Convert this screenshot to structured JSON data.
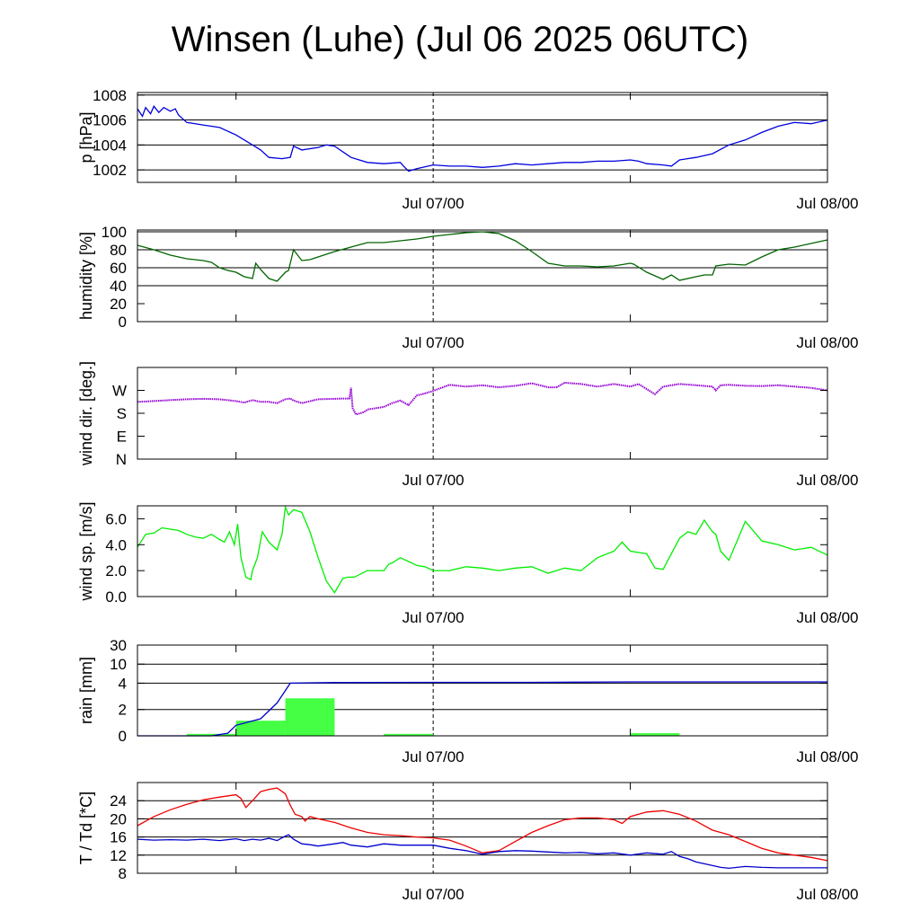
{
  "title": "Winsen (Luhe) (Jul 06 2025 06UTC)",
  "time_axis": {
    "start_hours": 0,
    "end_hours": 42,
    "labels": [
      {
        "at_hours": 18,
        "text": "Jul 07/00"
      },
      {
        "at_hours": 42,
        "text": "Jul 08/00"
      }
    ],
    "minor_ticks_hours": [
      6,
      30
    ]
  },
  "colors": {
    "pressure": "#0000dd",
    "humidity": "#006400",
    "wind_dir": "#9400d3",
    "wind_speed": "#00ee00",
    "rain_bar": "#44ff44",
    "rain_sum": "#0000cc",
    "temperature": "#ee0000",
    "dewpoint": "#0000cc"
  },
  "chart_data": [
    {
      "id": "pressure",
      "type": "line",
      "ylabel": "p [hPa]",
      "ylim": [
        1001,
        1008.2
      ],
      "yticks": [
        1002,
        1004,
        1006,
        1008
      ],
      "ytick_labels": [
        "1002",
        "1004",
        "1006",
        "1008"
      ],
      "grid_lines": [
        1002,
        1004,
        1006,
        1008
      ],
      "series": [
        {
          "color_key": "pressure",
          "x": [
            0,
            0.3,
            0.5,
            0.8,
            1.0,
            1.3,
            1.6,
            2.0,
            2.3,
            2.5,
            3,
            4,
            5,
            6,
            7,
            7.5,
            8,
            8.8,
            9.3,
            9.5,
            10,
            11,
            11.5,
            12,
            13,
            14,
            15,
            16,
            16.2,
            16.5,
            17,
            18,
            19,
            20,
            21,
            22,
            23,
            24,
            25,
            26,
            27,
            28,
            29,
            30,
            30.5,
            31,
            32,
            32.5,
            33,
            34,
            35,
            36,
            37,
            38,
            39,
            40,
            41,
            42
          ],
          "y": [
            1006.9,
            1006.3,
            1007.0,
            1006.5,
            1007.1,
            1006.6,
            1007.0,
            1006.7,
            1006.9,
            1006.4,
            1005.8,
            1005.6,
            1005.4,
            1004.8,
            1004.0,
            1003.6,
            1003.0,
            1002.9,
            1003.0,
            1003.9,
            1003.6,
            1003.8,
            1004.0,
            1003.9,
            1003.0,
            1002.6,
            1002.5,
            1002.6,
            1002.3,
            1001.9,
            1002.1,
            1002.4,
            1002.3,
            1002.3,
            1002.2,
            1002.3,
            1002.5,
            1002.4,
            1002.5,
            1002.6,
            1002.6,
            1002.7,
            1002.7,
            1002.8,
            1002.7,
            1002.5,
            1002.4,
            1002.3,
            1002.8,
            1003.0,
            1003.3,
            1004.0,
            1004.4,
            1005.0,
            1005.5,
            1005.8,
            1005.7,
            1006.0
          ]
        }
      ]
    },
    {
      "id": "humidity",
      "type": "line",
      "ylabel": "humidity [%]",
      "ylim": [
        0,
        102
      ],
      "yticks": [
        0,
        20,
        40,
        60,
        80,
        100
      ],
      "ytick_labels": [
        "0",
        "20",
        "40",
        "60",
        "80",
        "100"
      ],
      "grid_lines": [
        40,
        60,
        80,
        100
      ],
      "series": [
        {
          "color_key": "humidity",
          "x": [
            0,
            1,
            2,
            3,
            4,
            4.5,
            5,
            5.5,
            6,
            6.2,
            6.5,
            7,
            7.2,
            7.5,
            8,
            8.5,
            9,
            9.2,
            9.5,
            10,
            10.5,
            11,
            12,
            13,
            14,
            15,
            16,
            17,
            18,
            19,
            20,
            21,
            22,
            23,
            24,
            25,
            26,
            27,
            28,
            29,
            30,
            30.2,
            31,
            32,
            32.5,
            33,
            34,
            34.5,
            35,
            35.2,
            36,
            37,
            38,
            39,
            40,
            41,
            42
          ],
          "y": [
            85,
            80,
            74,
            70,
            68,
            66,
            60,
            57,
            55,
            53,
            50,
            48,
            65,
            58,
            48,
            45,
            55,
            57,
            80,
            68,
            69,
            72,
            78,
            83,
            88,
            88,
            90,
            92,
            95,
            97,
            99,
            100,
            98,
            90,
            78,
            65,
            62,
            62,
            61,
            62,
            65,
            64,
            55,
            47,
            52,
            46,
            50,
            52,
            52,
            62,
            64,
            63,
            72,
            80,
            83,
            87,
            91
          ]
        }
      ]
    },
    {
      "id": "wind_dir",
      "type": "scatter",
      "ylabel": "wind dir. [deg.]",
      "ylim": [
        0,
        360
      ],
      "yticks": [
        0,
        90,
        180,
        270
      ],
      "ytick_labels": [
        "N",
        "E",
        "S",
        "W"
      ],
      "grid_lines": [],
      "series": [
        {
          "color_key": "wind_dir",
          "x": [
            0,
            1,
            2,
            3,
            4,
            5,
            6,
            6.5,
            7,
            7.5,
            8,
            8.5,
            9,
            9.3,
            9.5,
            10,
            11,
            12,
            12.5,
            12.9,
            13,
            13.1,
            13.3,
            13.8,
            14,
            15,
            15.5,
            16,
            16.5,
            17,
            17.5,
            18,
            19,
            20,
            21,
            22,
            23,
            24,
            25,
            25.5,
            26,
            27,
            28,
            29,
            30,
            30.5,
            31,
            31.5,
            32,
            33,
            34,
            35,
            35.2,
            35.5,
            36,
            37,
            38,
            39,
            40,
            41,
            42
          ],
          "y": [
            225,
            228,
            232,
            235,
            237,
            235,
            228,
            222,
            232,
            225,
            225,
            220,
            235,
            238,
            230,
            220,
            235,
            237,
            238,
            238,
            280,
            200,
            175,
            185,
            195,
            205,
            220,
            230,
            212,
            250,
            258,
            268,
            292,
            285,
            290,
            282,
            288,
            298,
            282,
            282,
            300,
            295,
            285,
            295,
            285,
            295,
            275,
            255,
            285,
            295,
            290,
            285,
            270,
            290,
            292,
            288,
            287,
            290,
            285,
            280,
            270
          ]
        }
      ]
    },
    {
      "id": "wind_speed",
      "type": "line",
      "ylabel": "wind sp. [m/s]",
      "ylim": [
        0,
        7.0
      ],
      "yticks": [
        0,
        2,
        4,
        6
      ],
      "ytick_labels": [
        "0.0",
        "2.0",
        "4.0",
        "6.0"
      ],
      "grid_lines": [],
      "series": [
        {
          "color_key": "wind_speed",
          "x": [
            0,
            0.5,
            1,
            1.5,
            2,
            2.5,
            3,
            3.5,
            4,
            4.5,
            5,
            5.3,
            5.6,
            5.9,
            6.1,
            6.3,
            6.6,
            6.9,
            7,
            7.3,
            7.6,
            8,
            8.5,
            8.8,
            9,
            9.2,
            9.5,
            10,
            10.5,
            11,
            11.5,
            12,
            12.5,
            12.8,
            13,
            13.2,
            14,
            15,
            15.3,
            15.5,
            16,
            16.5,
            17,
            17.5,
            18,
            19,
            20,
            21,
            22,
            23,
            24,
            25,
            26,
            27,
            28,
            29,
            29.5,
            30,
            31,
            31.5,
            32,
            33,
            33.5,
            34,
            34.5,
            35,
            35.2,
            35.5,
            36,
            37,
            38,
            39,
            40,
            41,
            42
          ],
          "y": [
            3.8,
            4.8,
            4.9,
            5.3,
            5.2,
            5.1,
            4.8,
            4.6,
            4.5,
            4.8,
            4.4,
            4.2,
            5.0,
            4.0,
            5.6,
            3.0,
            1.5,
            1.3,
            2.0,
            3.0,
            5.0,
            4.2,
            3.6,
            4.8,
            6.9,
            6.3,
            6.7,
            6.5,
            5.0,
            3.0,
            1.2,
            0.3,
            1.4,
            1.5,
            1.5,
            1.5,
            2.0,
            2.0,
            2.5,
            2.6,
            3.0,
            2.7,
            2.4,
            2.3,
            2.0,
            2.0,
            2.3,
            2.2,
            2.0,
            2.2,
            2.3,
            1.8,
            2.2,
            2.0,
            3.0,
            3.5,
            4.2,
            3.5,
            3.3,
            2.2,
            2.1,
            4.5,
            5.0,
            4.8,
            5.9,
            5.0,
            4.8,
            3.5,
            2.8,
            5.8,
            4.3,
            4.0,
            3.6,
            3.8,
            3.2
          ]
        }
      ]
    },
    {
      "id": "rain",
      "type": "bar",
      "ylabel": "rain [mm]",
      "ylim": [
        0,
        30
      ],
      "yticks": [
        0,
        2,
        4,
        10,
        30
      ],
      "ytick_labels": [
        "0",
        "2",
        "4",
        "10",
        "30"
      ],
      "grid_lines": [
        2,
        4,
        10,
        30
      ],
      "bars": {
        "color_key": "rain_bar",
        "bin_hours": 3,
        "starts": [
          3,
          6,
          9,
          15,
          30
        ],
        "values": [
          0.15,
          1.15,
          2.85,
          0.15,
          0.2
        ]
      },
      "series": [
        {
          "color_key": "rain_sum",
          "x": [
            0,
            4.5,
            5.5,
            6,
            7.5,
            8.5,
            9.3,
            10,
            12,
            18,
            24,
            30,
            42
          ],
          "y": [
            0,
            0,
            0.2,
            0.8,
            1.3,
            2.5,
            4.0,
            4.1,
            4.2,
            4.25,
            4.25,
            4.4,
            4.4
          ]
        }
      ]
    },
    {
      "id": "temp",
      "type": "line",
      "ylabel": "T / Td [*C]",
      "ylim": [
        8,
        28
      ],
      "yticks": [
        8,
        12,
        16,
        20,
        24
      ],
      "ytick_labels": [
        "8",
        "12",
        "16",
        "20",
        "24"
      ],
      "grid_lines": [
        12,
        16,
        20,
        24
      ],
      "series": [
        {
          "color_key": "temperature",
          "x": [
            0,
            1,
            2,
            3,
            4,
            5,
            6,
            6.3,
            6.6,
            7,
            7.5,
            8,
            8.5,
            9,
            9.3,
            9.6,
            10,
            10.2,
            10.5,
            11,
            12,
            13,
            14,
            15,
            16,
            17,
            18,
            19,
            20,
            21,
            22,
            23,
            24,
            25,
            26,
            27,
            28,
            29,
            29.5,
            30,
            31,
            32,
            33,
            34,
            35,
            36,
            37,
            38,
            39,
            40,
            41,
            42
          ],
          "y": [
            18.5,
            20.5,
            22,
            23.2,
            24.2,
            24.8,
            25.3,
            24.5,
            22.5,
            24,
            26,
            26.5,
            26.8,
            25.5,
            23,
            21,
            20.5,
            19.5,
            20.5,
            20,
            19.2,
            18,
            17,
            16.5,
            16.3,
            16,
            15.8,
            15.3,
            14,
            12.5,
            13,
            15,
            17,
            18.5,
            19.8,
            20.2,
            20.2,
            19.8,
            19.0,
            20.5,
            21.5,
            21.8,
            21,
            19.5,
            17.5,
            16.5,
            15,
            13.5,
            12.5,
            12,
            11.5,
            10.8
          ]
        },
        {
          "color_key": "dewpoint",
          "x": [
            0,
            1,
            2,
            3,
            4,
            5,
            6,
            6.5,
            7,
            7.5,
            8,
            8.5,
            9,
            9.2,
            9.5,
            10,
            10.5,
            11,
            12,
            12.5,
            13,
            14,
            15,
            16,
            17,
            18,
            19,
            20,
            21,
            22,
            23,
            24,
            25,
            26,
            27,
            28,
            29,
            30,
            31,
            32,
            32.5,
            33,
            33.5,
            34,
            35,
            35.5,
            36,
            37,
            38,
            39,
            40,
            41,
            42
          ],
          "y": [
            15.5,
            15.3,
            15.4,
            15.3,
            15.5,
            15.2,
            15.6,
            15.2,
            15.5,
            15.3,
            15.7,
            15.2,
            16.2,
            16.5,
            15.5,
            14.5,
            14.3,
            14.0,
            14.5,
            14.8,
            14.2,
            13.8,
            14.5,
            14.2,
            14.2,
            14.2,
            13.5,
            13.0,
            12.2,
            12.8,
            13.0,
            12.9,
            12.7,
            12.5,
            12.6,
            12.3,
            12.5,
            12.0,
            12.5,
            12.2,
            12.8,
            11.7,
            11.2,
            10.5,
            9.7,
            9.3,
            9.1,
            9.5,
            9.3,
            9.2,
            9.2,
            9.2,
            9.2
          ]
        }
      ]
    }
  ]
}
